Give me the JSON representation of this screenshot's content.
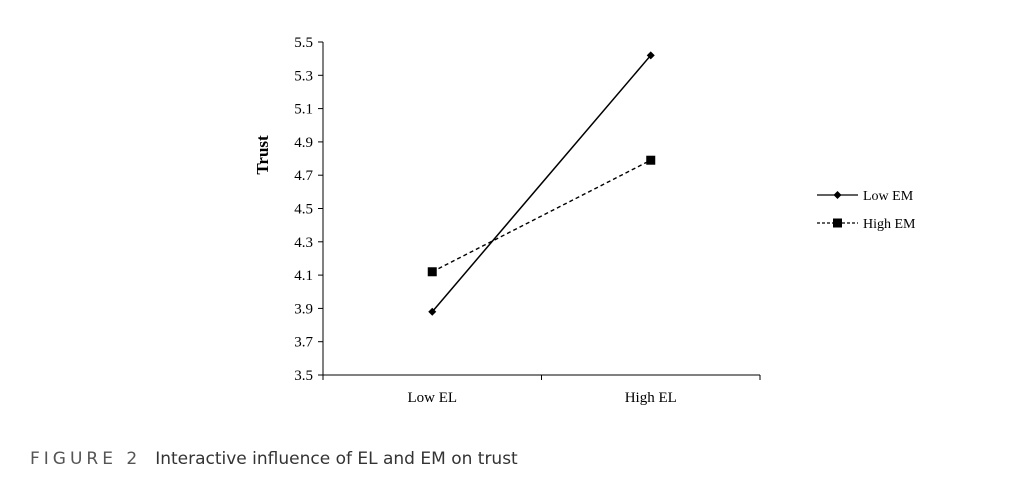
{
  "chart_data": {
    "type": "line",
    "title": "",
    "xlabel": "",
    "ylabel": "Trust",
    "categories": [
      "Low EL",
      "High EL"
    ],
    "ylim": [
      3.5,
      5.5
    ],
    "yticks": [
      "3.5",
      "3.7",
      "3.9",
      "4.1",
      "4.3",
      "4.5",
      "4.7",
      "4.9",
      "5.1",
      "5.3",
      "5.5"
    ],
    "grid": false,
    "legend_position": "right",
    "series": [
      {
        "name": "Low EM",
        "values": [
          3.88,
          5.42
        ],
        "marker": "diamond",
        "line_style": "solid",
        "color": "#000000"
      },
      {
        "name": "High EM",
        "values": [
          4.12,
          4.79
        ],
        "marker": "square",
        "line_style": "dashed",
        "color": "#000000"
      }
    ]
  },
  "caption": {
    "label": "FIGURE 2",
    "text": "Interactive influence of EL and EM on trust"
  }
}
